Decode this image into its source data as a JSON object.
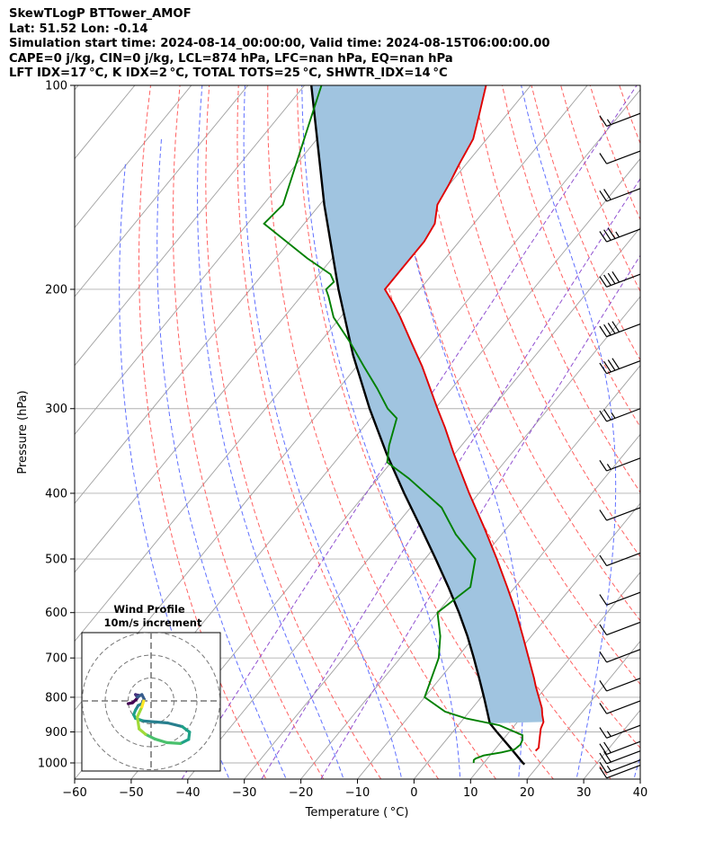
{
  "header": {
    "line1": "SkewTLogP BTTower_AMOF",
    "line2": "Lat: 51.52   Lon: -0.14",
    "line3": "Simulation start time: 2024-08-14_00:00:00, Valid time: 2024-08-15T06:00:00.00",
    "line4": "CAPE=0 j/kg, CIN=0 j/kg, LCL=874 hPa, LFC=nan hPa, EQ=nan hPa",
    "line5": "LFT IDX=17 °C, K IDX=2 °C, TOTAL TOTS=25 °C, SHWTR_IDX=14 °C"
  },
  "colors": {
    "temperature": "#e00000",
    "dewpoint": "#008000",
    "parcel": "#000000",
    "shade": "#a0c4e0",
    "dry_adiabat": "#ff6060",
    "moist_adiabat": "#6070ff",
    "mixing_ratio": "#9050d0",
    "isotherm": "#a0a0a0",
    "grid": "#b0b0b0"
  },
  "chart_data": {
    "type": "line",
    "subtype": "skew-T log-P diagram",
    "xlabel": "Temperature ( °C)",
    "ylabel": "Pressure (hPa)",
    "xlim": [
      -60,
      40
    ],
    "ylim": [
      1040,
      100
    ],
    "y_scale": "log",
    "x_ticks": [
      -60,
      -50,
      -40,
      -30,
      -20,
      -10,
      0,
      10,
      20,
      30,
      40
    ],
    "y_ticks": [
      100,
      200,
      300,
      400,
      500,
      600,
      700,
      800,
      900,
      1000
    ],
    "grid": true,
    "series": [
      {
        "role": "temperature",
        "p": [
          960,
          950,
          930,
          910,
          890,
          870,
          850,
          830,
          800,
          770,
          750,
          700,
          650,
          600,
          550,
          500,
          450,
          400,
          350,
          320,
          300,
          260,
          240,
          220,
          210,
          200,
          185,
          170,
          160,
          150,
          140,
          130,
          120,
          110,
          100
        ],
        "t": [
          17.4,
          17.5,
          16.7,
          15.9,
          15.1,
          14.6,
          13.4,
          12.3,
          10.2,
          8.0,
          6.6,
          2.7,
          -1.5,
          -6.1,
          -11.4,
          -17.3,
          -24.0,
          -31.7,
          -40.1,
          -45.5,
          -49.6,
          -58.4,
          -63.7,
          -69.4,
          -72.6,
          -76.2,
          -76.2,
          -76.2,
          -76.9,
          -79.2,
          -80.1,
          -81.3,
          -82.4,
          -85.0,
          -87.9
        ]
      },
      {
        "role": "dewpoint",
        "p": [
          1000,
          990,
          985,
          975,
          965,
          955,
          940,
          925,
          910,
          880,
          860,
          840,
          800,
          700,
          650,
          600,
          550,
          500,
          460,
          420,
          380,
          360,
          340,
          310,
          300,
          280,
          260,
          240,
          220,
          205,
          200,
          195,
          190,
          180,
          160,
          150,
          100
        ],
        "t": [
          8.2,
          7.8,
          7.9,
          8.9,
          11.6,
          13.5,
          13.8,
          13.5,
          12.8,
          7.3,
          0.5,
          -4.3,
          -10.0,
          -13.2,
          -16.1,
          -20.0,
          -17.9,
          -21.1,
          -28.1,
          -34.5,
          -44.6,
          -50.7,
          -52.8,
          -55.4,
          -58.4,
          -63.2,
          -68.7,
          -74.5,
          -81.2,
          -85.1,
          -86.6,
          -86.3,
          -88.0,
          -94.4,
          -107.1,
          -106.5,
          -117.0
        ]
      },
      {
        "role": "parcel",
        "p": [
          1005,
          1000,
          950,
          900,
          874,
          850,
          800,
          750,
          700,
          650,
          600,
          550,
          500,
          450,
          400,
          350,
          300,
          250,
          200,
          150,
          100
        ],
        "t": [
          17.4,
          16.9,
          12.5,
          7.8,
          5.3,
          3.8,
          0.5,
          -3.1,
          -7.0,
          -11.3,
          -16.2,
          -21.8,
          -28.1,
          -35.2,
          -43.2,
          -52.0,
          -61.6,
          -72.3,
          -84.4,
          -99.2,
          -118.8
        ]
      }
    ],
    "wind_barbs": [
      {
        "p": 1008,
        "speed_kt": 10
      },
      {
        "p": 990,
        "speed_kt": 15
      },
      {
        "p": 960,
        "speed_kt": 20
      },
      {
        "p": 930,
        "speed_kt": 20
      },
      {
        "p": 880,
        "speed_kt": 15
      },
      {
        "p": 810,
        "speed_kt": 10
      },
      {
        "p": 750,
        "speed_kt": 10
      },
      {
        "p": 680,
        "speed_kt": 10
      },
      {
        "p": 620,
        "speed_kt": 10
      },
      {
        "p": 560,
        "speed_kt": 10
      },
      {
        "p": 490,
        "speed_kt": 10
      },
      {
        "p": 420,
        "speed_kt": 10
      },
      {
        "p": 355,
        "speed_kt": 15
      },
      {
        "p": 300,
        "speed_kt": 25
      },
      {
        "p": 255,
        "speed_kt": 40
      },
      {
        "p": 225,
        "speed_kt": 40
      },
      {
        "p": 190,
        "speed_kt": 40
      },
      {
        "p": 163,
        "speed_kt": 35
      },
      {
        "p": 142,
        "speed_kt": 20
      },
      {
        "p": 125,
        "speed_kt": 10
      },
      {
        "p": 110,
        "speed_kt": 15
      }
    ],
    "inset": {
      "title_line1": "Wind Profile",
      "title_line2": "10m/s increment",
      "type": "hodograph",
      "ring_step_ms": 10,
      "trace_u": [
        -5.0,
        -4.0,
        -3.2,
        -2.6,
        -3.4,
        -3.0,
        -2.0,
        -1.5,
        -2.0,
        -2.8,
        -3.4,
        -3.8,
        -3.4,
        -1.6,
        1.2,
        3.6,
        6.8,
        8.4,
        8.2,
        6.4,
        3.4,
        0.8,
        -1.2,
        -2.6,
        -3.0,
        -2.0,
        -1.6
      ],
      "trace_v": [
        -0.6,
        -0.4,
        0.4,
        1.2,
        1.4,
        0.8,
        1.4,
        0.4,
        -0.6,
        -1.0,
        -2.0,
        -3.0,
        -3.8,
        -4.4,
        -4.6,
        -4.8,
        -5.6,
        -6.8,
        -8.4,
        -9.3,
        -9.1,
        -8.3,
        -7.3,
        -6.1,
        -3.5,
        -1.3,
        0.0
      ]
    }
  }
}
